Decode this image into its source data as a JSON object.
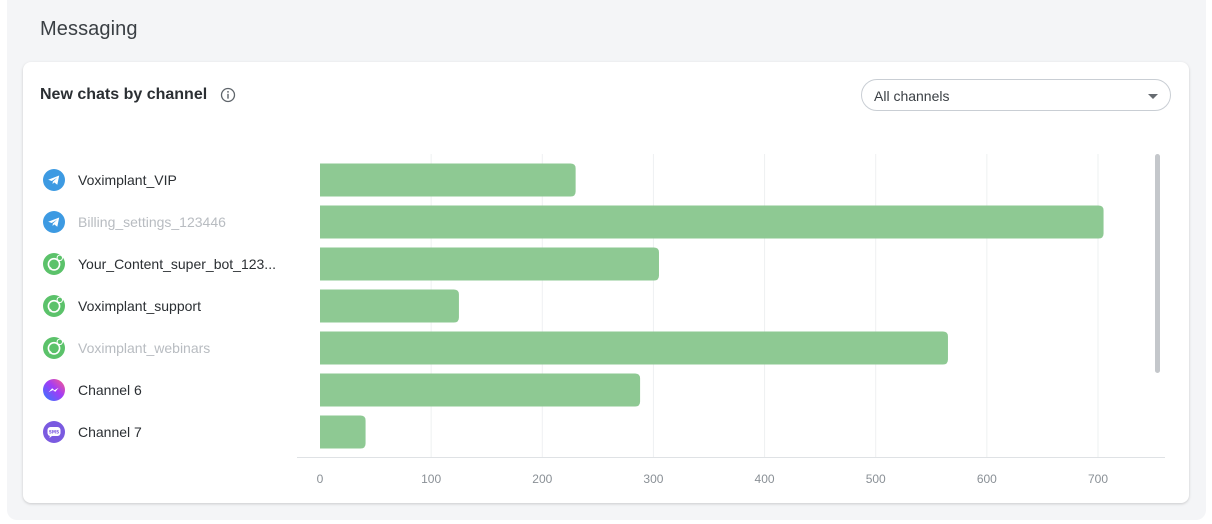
{
  "section": {
    "title": "Messaging"
  },
  "card": {
    "title": "New chats by channel",
    "info_icon": "info-circle-icon",
    "filter": {
      "selected": "All channels"
    }
  },
  "channels": [
    {
      "name": "Voximplant_VIP",
      "icon": "telegram-icon",
      "dim": false
    },
    {
      "name": "Billing_settings_123446",
      "icon": "telegram-icon",
      "dim": true
    },
    {
      "name": "Your_Content_super_bot_123...",
      "icon": "whatsapp-icon",
      "dim": false
    },
    {
      "name": "Voximplant_support",
      "icon": "whatsapp-icon",
      "dim": false
    },
    {
      "name": "Voximplant_webinars",
      "icon": "whatsapp-icon",
      "dim": true
    },
    {
      "name": "Channel 6",
      "icon": "messenger-icon",
      "dim": false
    },
    {
      "name": "Channel 7",
      "icon": "sms-icon",
      "dim": false
    }
  ],
  "colors": {
    "bar": "#8ec993",
    "telegram": "#3d9ae2",
    "whatsapp": "#5bc26a",
    "sms": "#7a5ae0",
    "grid": "#eef0f2",
    "axis": "#dfe2e5",
    "tick": "#8a9096"
  },
  "chart_data": {
    "type": "bar",
    "orientation": "horizontal",
    "title": "New chats by channel",
    "categories": [
      "Voximplant_VIP",
      "Billing_settings_123446",
      "Your_Content_super_bot_123...",
      "Voximplant_support",
      "Voximplant_webinars",
      "Channel 6",
      "Channel 7"
    ],
    "values": [
      230,
      705,
      305,
      125,
      565,
      288,
      41
    ],
    "xlim": [
      0,
      760
    ],
    "ticks": [
      0,
      100,
      200,
      300,
      400,
      500,
      600,
      700
    ],
    "xlabel": "",
    "ylabel": "",
    "grid": true
  }
}
